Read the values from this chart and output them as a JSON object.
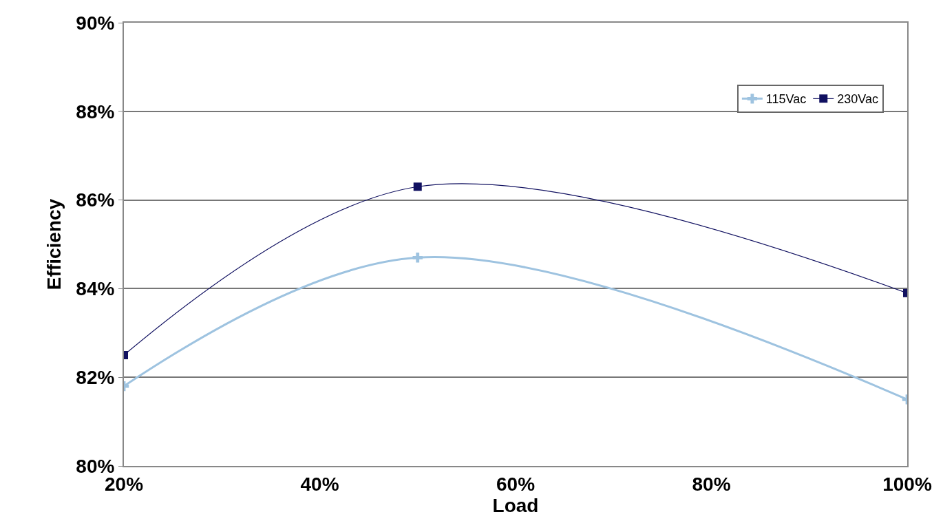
{
  "chart_data": {
    "type": "line",
    "xlabel": "Load",
    "ylabel": "Efficiency",
    "x": [
      20,
      50,
      100
    ],
    "series": [
      {
        "name": "115Vac",
        "color": "#9ec3e0",
        "values": [
          81.8,
          84.7,
          81.5
        ],
        "marker": "cross"
      },
      {
        "name": "230Vac",
        "color": "#101060",
        "values": [
          82.5,
          86.3,
          83.9
        ],
        "marker": "square"
      }
    ],
    "xlim": [
      20,
      100
    ],
    "xticks": [
      {
        "value": 20,
        "label": "20%"
      },
      {
        "value": 40,
        "label": "40%"
      },
      {
        "value": 60,
        "label": "60%"
      },
      {
        "value": 80,
        "label": "80%"
      },
      {
        "value": 100,
        "label": "100%"
      }
    ],
    "ylim": [
      80,
      90
    ],
    "yticks": [
      {
        "value": 80,
        "label": "80%"
      },
      {
        "value": 82,
        "label": "82%"
      },
      {
        "value": 84,
        "label": "84%"
      },
      {
        "value": 86,
        "label": "86%"
      },
      {
        "value": 88,
        "label": "88%"
      },
      {
        "value": 90,
        "label": "90%"
      }
    ],
    "grid": "y",
    "legend": "top right",
    "line_style": "solid"
  }
}
